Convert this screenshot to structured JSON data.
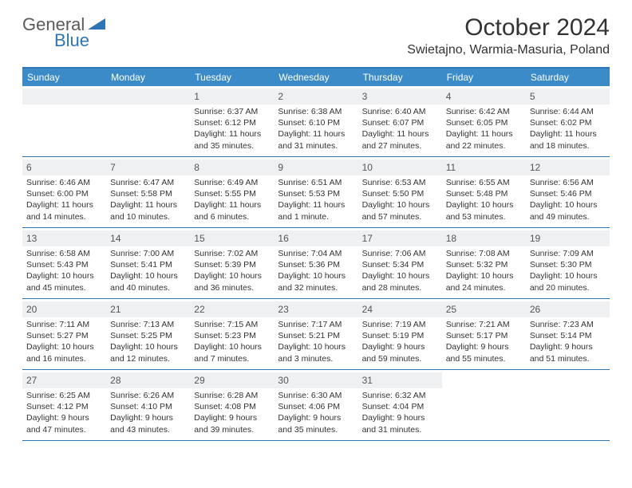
{
  "logo": {
    "general": "General",
    "blue": "Blue"
  },
  "title": "October 2024",
  "location": "Swietajno, Warmia-Masuria, Poland",
  "weekdays": [
    "Sunday",
    "Monday",
    "Tuesday",
    "Wednesday",
    "Thursday",
    "Friday",
    "Saturday"
  ],
  "colors": {
    "accent": "#2e75b6",
    "headerBg": "#3b8bc9",
    "dayNumBg": "#eef0f2",
    "text": "#333333"
  },
  "weeks": [
    [
      null,
      null,
      {
        "n": "1",
        "sr": "6:37 AM",
        "ss": "6:12 PM",
        "dl": "11 hours and 35 minutes."
      },
      {
        "n": "2",
        "sr": "6:38 AM",
        "ss": "6:10 PM",
        "dl": "11 hours and 31 minutes."
      },
      {
        "n": "3",
        "sr": "6:40 AM",
        "ss": "6:07 PM",
        "dl": "11 hours and 27 minutes."
      },
      {
        "n": "4",
        "sr": "6:42 AM",
        "ss": "6:05 PM",
        "dl": "11 hours and 22 minutes."
      },
      {
        "n": "5",
        "sr": "6:44 AM",
        "ss": "6:02 PM",
        "dl": "11 hours and 18 minutes."
      }
    ],
    [
      {
        "n": "6",
        "sr": "6:46 AM",
        "ss": "6:00 PM",
        "dl": "11 hours and 14 minutes."
      },
      {
        "n": "7",
        "sr": "6:47 AM",
        "ss": "5:58 PM",
        "dl": "11 hours and 10 minutes."
      },
      {
        "n": "8",
        "sr": "6:49 AM",
        "ss": "5:55 PM",
        "dl": "11 hours and 6 minutes."
      },
      {
        "n": "9",
        "sr": "6:51 AM",
        "ss": "5:53 PM",
        "dl": "11 hours and 1 minute."
      },
      {
        "n": "10",
        "sr": "6:53 AM",
        "ss": "5:50 PM",
        "dl": "10 hours and 57 minutes."
      },
      {
        "n": "11",
        "sr": "6:55 AM",
        "ss": "5:48 PM",
        "dl": "10 hours and 53 minutes."
      },
      {
        "n": "12",
        "sr": "6:56 AM",
        "ss": "5:46 PM",
        "dl": "10 hours and 49 minutes."
      }
    ],
    [
      {
        "n": "13",
        "sr": "6:58 AM",
        "ss": "5:43 PM",
        "dl": "10 hours and 45 minutes."
      },
      {
        "n": "14",
        "sr": "7:00 AM",
        "ss": "5:41 PM",
        "dl": "10 hours and 40 minutes."
      },
      {
        "n": "15",
        "sr": "7:02 AM",
        "ss": "5:39 PM",
        "dl": "10 hours and 36 minutes."
      },
      {
        "n": "16",
        "sr": "7:04 AM",
        "ss": "5:36 PM",
        "dl": "10 hours and 32 minutes."
      },
      {
        "n": "17",
        "sr": "7:06 AM",
        "ss": "5:34 PM",
        "dl": "10 hours and 28 minutes."
      },
      {
        "n": "18",
        "sr": "7:08 AM",
        "ss": "5:32 PM",
        "dl": "10 hours and 24 minutes."
      },
      {
        "n": "19",
        "sr": "7:09 AM",
        "ss": "5:30 PM",
        "dl": "10 hours and 20 minutes."
      }
    ],
    [
      {
        "n": "20",
        "sr": "7:11 AM",
        "ss": "5:27 PM",
        "dl": "10 hours and 16 minutes."
      },
      {
        "n": "21",
        "sr": "7:13 AM",
        "ss": "5:25 PM",
        "dl": "10 hours and 12 minutes."
      },
      {
        "n": "22",
        "sr": "7:15 AM",
        "ss": "5:23 PM",
        "dl": "10 hours and 7 minutes."
      },
      {
        "n": "23",
        "sr": "7:17 AM",
        "ss": "5:21 PM",
        "dl": "10 hours and 3 minutes."
      },
      {
        "n": "24",
        "sr": "7:19 AM",
        "ss": "5:19 PM",
        "dl": "9 hours and 59 minutes."
      },
      {
        "n": "25",
        "sr": "7:21 AM",
        "ss": "5:17 PM",
        "dl": "9 hours and 55 minutes."
      },
      {
        "n": "26",
        "sr": "7:23 AM",
        "ss": "5:14 PM",
        "dl": "9 hours and 51 minutes."
      }
    ],
    [
      {
        "n": "27",
        "sr": "6:25 AM",
        "ss": "4:12 PM",
        "dl": "9 hours and 47 minutes."
      },
      {
        "n": "28",
        "sr": "6:26 AM",
        "ss": "4:10 PM",
        "dl": "9 hours and 43 minutes."
      },
      {
        "n": "29",
        "sr": "6:28 AM",
        "ss": "4:08 PM",
        "dl": "9 hours and 39 minutes."
      },
      {
        "n": "30",
        "sr": "6:30 AM",
        "ss": "4:06 PM",
        "dl": "9 hours and 35 minutes."
      },
      {
        "n": "31",
        "sr": "6:32 AM",
        "ss": "4:04 PM",
        "dl": "9 hours and 31 minutes."
      },
      null,
      null
    ]
  ],
  "labels": {
    "sunrise": "Sunrise: ",
    "sunset": "Sunset: ",
    "daylight": "Daylight: "
  }
}
